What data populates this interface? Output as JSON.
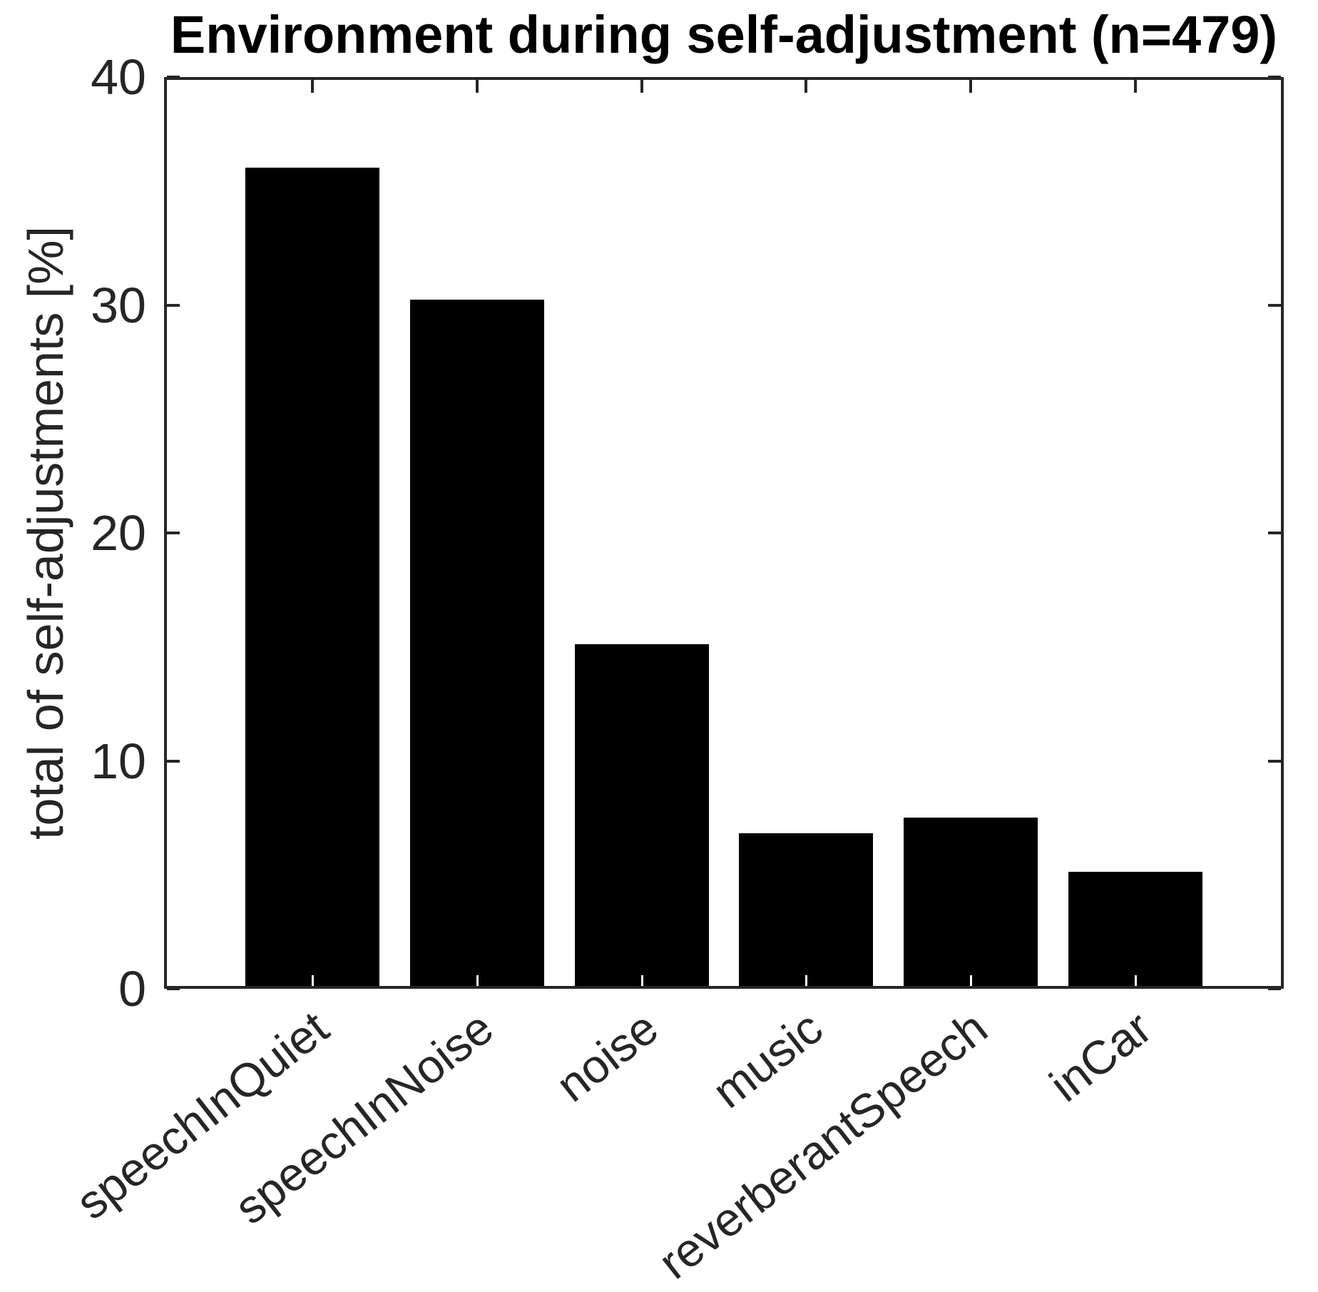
{
  "chart_data": {
    "type": "bar",
    "title": "Environment during self-adjustment (n=479)",
    "ylabel": "total of self-adjustments [%]",
    "xlabel": "",
    "categories": [
      "speechInQuiet",
      "speechInNoise",
      "noise",
      "music",
      "reverberantSpeech",
      "inCar"
    ],
    "values": [
      35.9,
      30.1,
      15.0,
      6.7,
      7.4,
      5.0
    ],
    "ylim": [
      0,
      40
    ],
    "yticks": [
      0,
      10,
      20,
      30,
      40
    ],
    "xtick_label_rotation_deg": 38,
    "bar_color": "#000000",
    "axis_color": "#262626",
    "title_color": "#000000",
    "background_color": "#ffffff",
    "grid": false,
    "legend": "none"
  }
}
